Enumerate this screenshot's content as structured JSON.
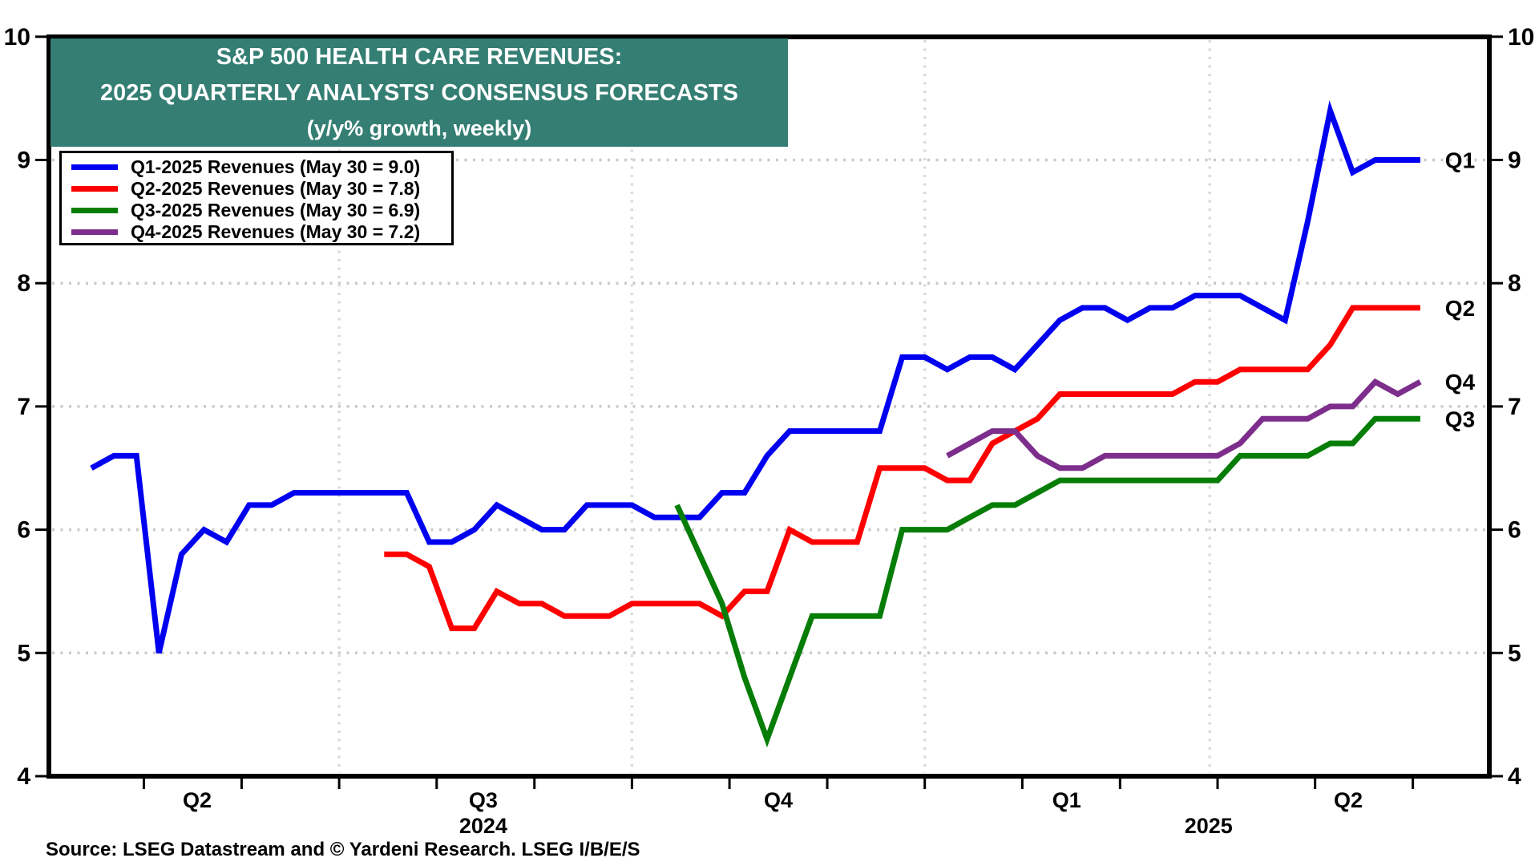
{
  "title": {
    "line1": "S&P 500 HEALTH CARE REVENUES:",
    "line2": "2025 QUARTERLY ANALYSTS' CONSENSUS FORECASTS",
    "line3": "(y/y% growth, weekly)"
  },
  "source": {
    "text": "Source: LSEG Datastream and © Yardeni Research. LSEG I/B/E/S"
  },
  "colors": {
    "q1": "#0000F0",
    "q2": "#FF0000",
    "q3": "#067D06",
    "q4": "#7D2E8C",
    "title_bg": "#347E73",
    "title_text": "#FFFFFF",
    "grid": "#C9C9C9",
    "vgrid": "#DBDBDB",
    "frame": "#000000"
  },
  "legend": {
    "items": [
      {
        "label": "Q1-2025 Revenues (May 30 = 9.0)",
        "color_key": "q1"
      },
      {
        "label": "Q2-2025 Revenues (May 30 = 7.8)",
        "color_key": "q2"
      },
      {
        "label": "Q3-2025 Revenues (May 30 = 6.9)",
        "color_key": "q3"
      },
      {
        "label": "Q4-2025 Revenues (May 30 = 7.2)",
        "color_key": "q4"
      }
    ]
  },
  "chart_data": {
    "type": "line",
    "title": "S&P 500 HEALTH CARE REVENUES: 2025 QUARTERLY ANALYSTS' CONSENSUS FORECASTS (y/y% growth, weekly)",
    "ylim": [
      4,
      10
    ],
    "yticks": [
      4,
      5,
      6,
      7,
      8,
      9,
      10
    ],
    "grid_yticks": [
      5,
      6,
      7,
      8,
      9
    ],
    "grid": true,
    "legend_position": "top-left",
    "x_axis": {
      "unit": "weeks since mid-April 2024",
      "weeks_total": 59,
      "quarter_gridline_weeks": [
        11,
        24,
        37,
        49.65
      ],
      "month_tick_weeks": [
        2.33,
        6.67,
        11,
        15.33,
        19.67,
        24,
        28.33,
        32.67,
        37,
        41.33,
        45.67,
        50,
        54.33,
        58.67
      ],
      "quarter_labels": [
        {
          "text": "Q2",
          "week": 4.7
        },
        {
          "text": "Q3",
          "week": 17.4
        },
        {
          "text": "Q4",
          "week": 30.5
        },
        {
          "text": "Q1",
          "week": 43.3
        },
        {
          "text": "Q2",
          "week": 55.8
        }
      ],
      "year_labels": [
        {
          "text": "2024",
          "week": 17.4
        },
        {
          "text": "2025",
          "week": 49.6
        }
      ]
    },
    "series": [
      {
        "name": "Q1-2025 Revenues (May 30 = 9.0)",
        "end_label": "Q1",
        "color_key": "q1",
        "start_week": 0,
        "values": [
          6.5,
          6.6,
          6.6,
          5.0,
          5.8,
          6.0,
          5.9,
          6.2,
          6.2,
          6.3,
          6.3,
          6.3,
          6.3,
          6.3,
          6.3,
          5.9,
          5.9,
          6.0,
          6.2,
          6.1,
          6.0,
          6.0,
          6.2,
          6.2,
          6.2,
          6.1,
          6.1,
          6.1,
          6.3,
          6.3,
          6.6,
          6.8,
          6.8,
          6.8,
          6.8,
          6.8,
          7.4,
          7.4,
          7.3,
          7.4,
          7.4,
          7.3,
          7.5,
          7.7,
          7.8,
          7.8,
          7.7,
          7.8,
          7.8,
          7.9,
          7.9,
          7.9,
          7.8,
          7.7,
          8.5,
          9.4,
          8.9,
          9.0,
          9.0,
          9.0
        ]
      },
      {
        "name": "Q2-2025 Revenues (May 30 = 7.8)",
        "end_label": "Q2",
        "color_key": "q2",
        "start_week": 13,
        "values": [
          5.8,
          5.8,
          5.7,
          5.2,
          5.2,
          5.5,
          5.4,
          5.4,
          5.3,
          5.3,
          5.3,
          5.4,
          5.4,
          5.4,
          5.4,
          5.3,
          5.5,
          5.5,
          6.0,
          5.9,
          5.9,
          5.9,
          6.5,
          6.5,
          6.5,
          6.4,
          6.4,
          6.7,
          6.8,
          6.9,
          7.1,
          7.1,
          7.1,
          7.1,
          7.1,
          7.1,
          7.2,
          7.2,
          7.3,
          7.3,
          7.3,
          7.3,
          7.5,
          7.8,
          7.8,
          7.8,
          7.8
        ]
      },
      {
        "name": "Q3-2025 Revenues (May 30 = 6.9)",
        "end_label": "Q3",
        "color_key": "q3",
        "start_week": 26,
        "values": [
          6.2,
          5.8,
          5.4,
          4.8,
          4.3,
          4.8,
          5.3,
          5.3,
          5.3,
          5.3,
          6.0,
          6.0,
          6.0,
          6.1,
          6.2,
          6.2,
          6.3,
          6.4,
          6.4,
          6.4,
          6.4,
          6.4,
          6.4,
          6.4,
          6.4,
          6.6,
          6.6,
          6.6,
          6.6,
          6.7,
          6.7,
          6.9,
          6.9,
          6.9
        ]
      },
      {
        "name": "Q4-2025 Revenues (May 30 = 7.2)",
        "end_label": "Q4",
        "color_key": "q4",
        "start_week": 38,
        "values": [
          6.6,
          6.7,
          6.8,
          6.8,
          6.6,
          6.5,
          6.5,
          6.6,
          6.6,
          6.6,
          6.6,
          6.6,
          6.6,
          6.7,
          6.9,
          6.9,
          6.9,
          7.0,
          7.0,
          7.2,
          7.1,
          7.2
        ]
      }
    ]
  }
}
